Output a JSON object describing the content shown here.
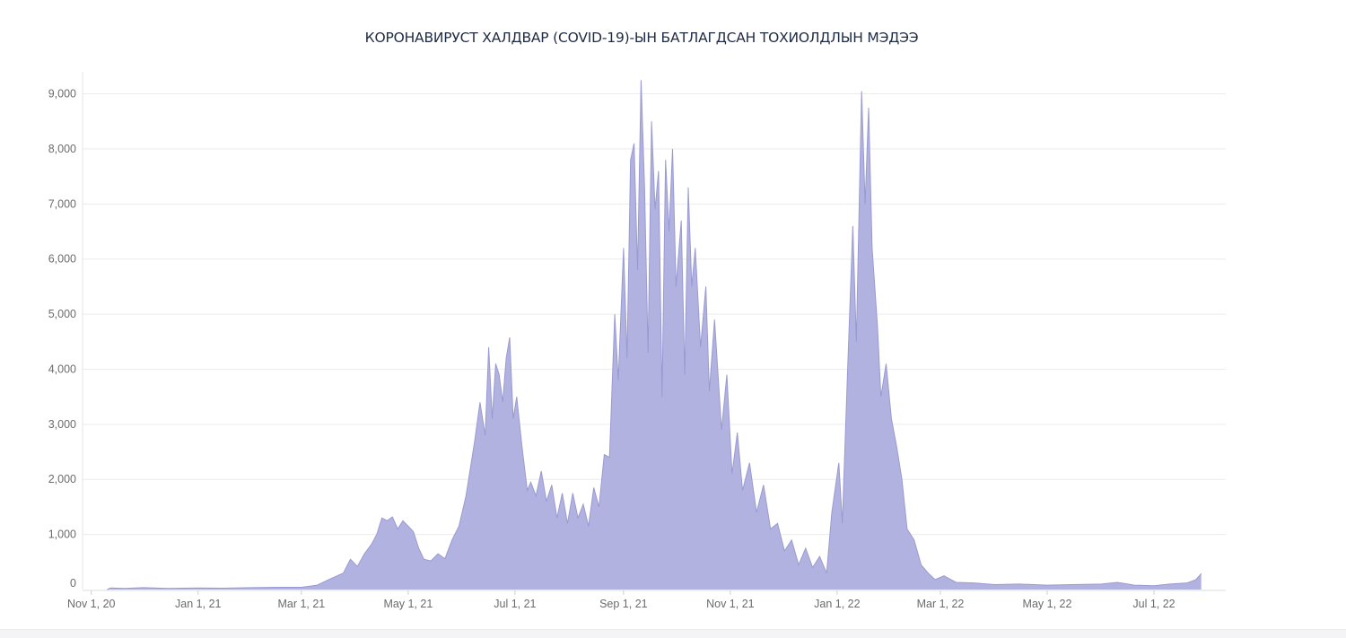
{
  "chart_data": {
    "type": "area",
    "title": "КОРОНАВИРУСТ ХАЛДВАР (COVID-19)-ЫН БАТЛАГДСАН ТОХИОЛДЛЫН МЭДЭЭ",
    "xlabel": "",
    "ylabel": "",
    "color": "#aeaedf",
    "line_color": "#9a9ad3",
    "ylim": [
      0,
      9400
    ],
    "xlim": [
      "2020-10-27",
      "2022-08-11"
    ],
    "grid": true,
    "legend": "none",
    "y_ticks": [
      0,
      1000,
      2000,
      3000,
      4000,
      5000,
      6000,
      7000,
      8000,
      9000
    ],
    "y_tick_labels": [
      "0",
      "1,000",
      "2,000",
      "3,000",
      "4,000",
      "5,000",
      "6,000",
      "7,000",
      "8,000",
      "9,000"
    ],
    "x_ticks": [
      "2020-11-01",
      "2021-01-01",
      "2021-03-01",
      "2021-05-01",
      "2021-07-01",
      "2021-09-01",
      "2021-11-01",
      "2022-01-01",
      "2022-03-01",
      "2022-05-01",
      "2022-07-01"
    ],
    "x_tick_labels": [
      "Nov 1, 20",
      "Jan 1, 21",
      "Mar 1, 21",
      "May 1, 21",
      "Jul 1, 21",
      "Sep 1, 21",
      "Nov 1, 21",
      "Jan 1, 22",
      "Mar 1, 22",
      "May 1, 22",
      "Jul 1, 22"
    ],
    "series": [
      {
        "points": [
          [
            "2020-11-10",
            0
          ],
          [
            "2020-11-12",
            30
          ],
          [
            "2020-11-20",
            20
          ],
          [
            "2020-12-01",
            35
          ],
          [
            "2020-12-15",
            20
          ],
          [
            "2021-01-01",
            30
          ],
          [
            "2021-01-15",
            25
          ],
          [
            "2021-02-01",
            35
          ],
          [
            "2021-02-15",
            40
          ],
          [
            "2021-03-01",
            40
          ],
          [
            "2021-03-10",
            80
          ],
          [
            "2021-03-18",
            200
          ],
          [
            "2021-03-25",
            300
          ],
          [
            "2021-03-29",
            550
          ],
          [
            "2021-04-02",
            420
          ],
          [
            "2021-04-06",
            650
          ],
          [
            "2021-04-10",
            820
          ],
          [
            "2021-04-13",
            1000
          ],
          [
            "2021-04-16",
            1300
          ],
          [
            "2021-04-19",
            1250
          ],
          [
            "2021-04-22",
            1320
          ],
          [
            "2021-04-25",
            1100
          ],
          [
            "2021-04-28",
            1250
          ],
          [
            "2021-05-01",
            1150
          ],
          [
            "2021-05-04",
            1050
          ],
          [
            "2021-05-07",
            750
          ],
          [
            "2021-05-10",
            550
          ],
          [
            "2021-05-14",
            520
          ],
          [
            "2021-05-18",
            650
          ],
          [
            "2021-05-22",
            560
          ],
          [
            "2021-05-26",
            900
          ],
          [
            "2021-05-30",
            1150
          ],
          [
            "2021-06-03",
            1700
          ],
          [
            "2021-06-05",
            2100
          ],
          [
            "2021-06-08",
            2700
          ],
          [
            "2021-06-11",
            3400
          ],
          [
            "2021-06-14",
            2800
          ],
          [
            "2021-06-16",
            4400
          ],
          [
            "2021-06-18",
            3100
          ],
          [
            "2021-06-20",
            4100
          ],
          [
            "2021-06-22",
            3900
          ],
          [
            "2021-06-24",
            3400
          ],
          [
            "2021-06-26",
            4200
          ],
          [
            "2021-06-28",
            4580
          ],
          [
            "2021-06-30",
            3100
          ],
          [
            "2021-07-02",
            3500
          ],
          [
            "2021-07-05",
            2600
          ],
          [
            "2021-07-08",
            1800
          ],
          [
            "2021-07-10",
            1950
          ],
          [
            "2021-07-13",
            1700
          ],
          [
            "2021-07-16",
            2150
          ],
          [
            "2021-07-19",
            1600
          ],
          [
            "2021-07-22",
            1900
          ],
          [
            "2021-07-25",
            1300
          ],
          [
            "2021-07-28",
            1750
          ],
          [
            "2021-07-31",
            1200
          ],
          [
            "2021-08-03",
            1750
          ],
          [
            "2021-08-06",
            1300
          ],
          [
            "2021-08-09",
            1550
          ],
          [
            "2021-08-12",
            1150
          ],
          [
            "2021-08-15",
            1850
          ],
          [
            "2021-08-18",
            1500
          ],
          [
            "2021-08-21",
            2450
          ],
          [
            "2021-08-24",
            2400
          ],
          [
            "2021-08-27",
            5000
          ],
          [
            "2021-08-29",
            3800
          ],
          [
            "2021-09-01",
            6200
          ],
          [
            "2021-09-03",
            4200
          ],
          [
            "2021-09-05",
            7800
          ],
          [
            "2021-09-07",
            8100
          ],
          [
            "2021-09-09",
            5800
          ],
          [
            "2021-09-11",
            9250
          ],
          [
            "2021-09-13",
            7300
          ],
          [
            "2021-09-15",
            4300
          ],
          [
            "2021-09-17",
            8500
          ],
          [
            "2021-09-19",
            6900
          ],
          [
            "2021-09-21",
            7600
          ],
          [
            "2021-09-23",
            3500
          ],
          [
            "2021-09-25",
            7800
          ],
          [
            "2021-09-27",
            6500
          ],
          [
            "2021-09-29",
            8000
          ],
          [
            "2021-10-01",
            5500
          ],
          [
            "2021-10-04",
            6700
          ],
          [
            "2021-10-06",
            3900
          ],
          [
            "2021-10-08",
            7300
          ],
          [
            "2021-10-10",
            5500
          ],
          [
            "2021-10-12",
            6200
          ],
          [
            "2021-10-15",
            4400
          ],
          [
            "2021-10-18",
            5500
          ],
          [
            "2021-10-20",
            3600
          ],
          [
            "2021-10-23",
            4900
          ],
          [
            "2021-10-27",
            2900
          ],
          [
            "2021-10-30",
            3900
          ],
          [
            "2021-11-02",
            2100
          ],
          [
            "2021-11-05",
            2850
          ],
          [
            "2021-11-08",
            1800
          ],
          [
            "2021-11-12",
            2300
          ],
          [
            "2021-11-16",
            1400
          ],
          [
            "2021-11-20",
            1900
          ],
          [
            "2021-11-24",
            1100
          ],
          [
            "2021-11-28",
            1200
          ],
          [
            "2021-12-02",
            700
          ],
          [
            "2021-12-06",
            900
          ],
          [
            "2021-12-10",
            450
          ],
          [
            "2021-12-14",
            750
          ],
          [
            "2021-12-18",
            400
          ],
          [
            "2021-12-22",
            600
          ],
          [
            "2021-12-26",
            300
          ],
          [
            "2021-12-29",
            1400
          ],
          [
            "2022-01-02",
            2300
          ],
          [
            "2022-01-04",
            1200
          ],
          [
            "2022-01-07",
            4000
          ],
          [
            "2022-01-10",
            6600
          ],
          [
            "2022-01-12",
            4500
          ],
          [
            "2022-01-15",
            9050
          ],
          [
            "2022-01-17",
            7000
          ],
          [
            "2022-01-19",
            8750
          ],
          [
            "2022-01-21",
            6200
          ],
          [
            "2022-01-24",
            4800
          ],
          [
            "2022-01-26",
            3500
          ],
          [
            "2022-01-29",
            4100
          ],
          [
            "2022-02-01",
            3100
          ],
          [
            "2022-02-04",
            2600
          ],
          [
            "2022-02-07",
            2000
          ],
          [
            "2022-02-10",
            1100
          ],
          [
            "2022-02-14",
            900
          ],
          [
            "2022-02-18",
            450
          ],
          [
            "2022-02-22",
            300
          ],
          [
            "2022-02-26",
            180
          ],
          [
            "2022-03-03",
            250
          ],
          [
            "2022-03-10",
            130
          ],
          [
            "2022-03-20",
            120
          ],
          [
            "2022-04-01",
            90
          ],
          [
            "2022-04-15",
            100
          ],
          [
            "2022-05-01",
            80
          ],
          [
            "2022-05-15",
            90
          ],
          [
            "2022-06-01",
            100
          ],
          [
            "2022-06-10",
            130
          ],
          [
            "2022-06-20",
            80
          ],
          [
            "2022-07-01",
            70
          ],
          [
            "2022-07-10",
            100
          ],
          [
            "2022-07-20",
            120
          ],
          [
            "2022-07-25",
            180
          ],
          [
            "2022-07-28",
            290
          ]
        ]
      }
    ]
  }
}
